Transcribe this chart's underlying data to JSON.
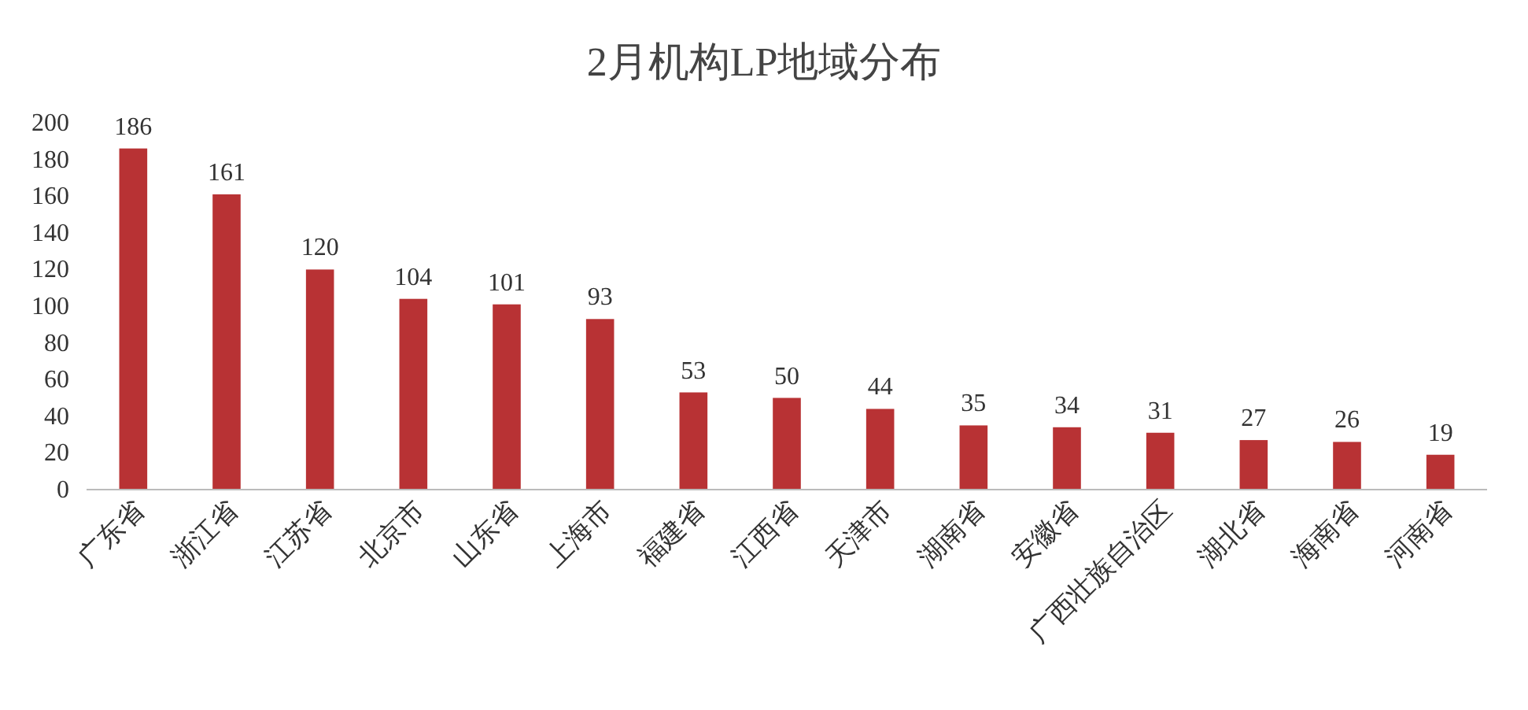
{
  "chart_data": {
    "type": "bar",
    "title": "2月机构LP地域分布",
    "categories": [
      "广东省",
      "浙江省",
      "江苏省",
      "北京市",
      "山东省",
      "上海市",
      "福建省",
      "江西省",
      "天津市",
      "湖南省",
      "安徽省",
      "广西壮族自治区",
      "湖北省",
      "海南省",
      "河南省"
    ],
    "values": [
      186,
      161,
      120,
      104,
      101,
      93,
      53,
      50,
      44,
      35,
      34,
      31,
      27,
      26,
      19
    ],
    "color": "#b83234",
    "ylim": [
      0,
      200
    ],
    "yticks": [
      0,
      20,
      40,
      60,
      80,
      100,
      120,
      140,
      160,
      180,
      200
    ],
    "data_labels": true
  }
}
